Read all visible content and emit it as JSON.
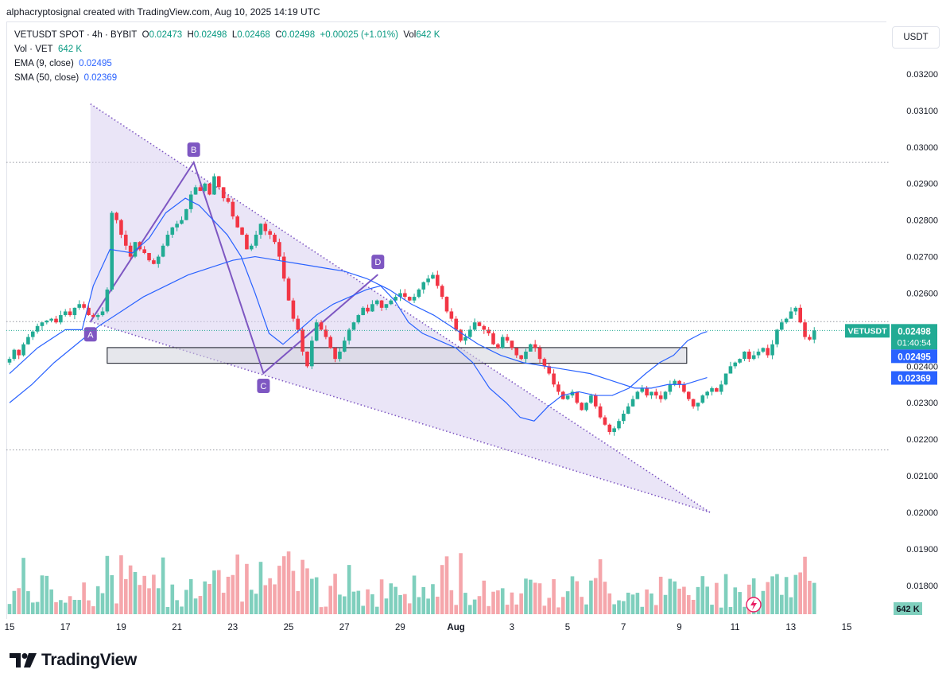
{
  "header": {
    "credit": "alphacryptosignal created with TradingView.com, Aug 10, 2025 14:19 UTC"
  },
  "legend": {
    "symbol": "VETUSDT SPOT · 4h · BYBIT",
    "o_label": "O",
    "o": "0.02473",
    "h_label": "H",
    "h": "0.02498",
    "l_label": "L",
    "l": "0.02468",
    "c_label": "C",
    "c": "0.02498",
    "change": "+0.00025 (+1.01%)",
    "vol_label": "Vol",
    "vol": "642 K",
    "vol_row": "Vol · VET",
    "vol_row_value": "642 K",
    "ema_label": "EMA (9, close)",
    "ema_value": "0.02495",
    "sma_label": "SMA (50, close)",
    "sma_value": "0.02369"
  },
  "currency": "USDT",
  "footer": {
    "brand": "TradingView"
  },
  "colors": {
    "up": "#22ab94",
    "down": "#f23645",
    "up_vol": "#7fcfbd",
    "down_vol": "#f5a6ab",
    "ma": "#2962ff",
    "pattern": "#7e57c2",
    "pattern_fill": "#d9d0f0"
  },
  "chart_data": {
    "type": "candlestick",
    "title": "VETUSDT SPOT · 4h · BYBIT",
    "ylim": [
      0.0174,
      0.0329
    ],
    "yticks": [
      "0.03200",
      "0.03100",
      "0.03000",
      "0.02900",
      "0.02800",
      "0.02700",
      "0.02600",
      "0.02400",
      "0.02300",
      "0.02200",
      "0.02100",
      "0.02000",
      "0.01900",
      "0.01800"
    ],
    "xticks": [
      "15",
      "17",
      "19",
      "21",
      "23",
      "25",
      "27",
      "29",
      "Aug",
      "3",
      "5",
      "7",
      "9",
      "11",
      "13",
      "15"
    ],
    "price_labels": [
      {
        "text": "VETUSDT",
        "value": "0.02498",
        "sub": "01:40:54",
        "y": 0.02498
      },
      {
        "text": "",
        "value": "0.02495",
        "sub": "",
        "y": 0.02495
      },
      {
        "text": "",
        "value": "0.02369",
        "sub": "",
        "y": 0.02369
      }
    ],
    "volume_label": "642 K",
    "pattern_points": [
      {
        "label": "A",
        "date_index": 17.9,
        "price": 0.02522
      },
      {
        "label": "B",
        "date_index": 21.6,
        "price": 0.02958
      },
      {
        "label": "C",
        "date_index": 24.1,
        "price": 0.02381
      },
      {
        "label": "D",
        "date_index": 28.2,
        "price": 0.02651
      }
    ],
    "wedge": {
      "upper": [
        [
          17.9,
          0.03118
        ],
        [
          40.1,
          0.02
        ]
      ],
      "lower": [
        [
          17.9,
          0.02522
        ],
        [
          40.1,
          0.02
        ]
      ]
    },
    "zone": {
      "from_index": 18.5,
      "to_index": 38.5,
      "top": 0.02451,
      "bottom": 0.02408
    },
    "hlines": [
      0.02958,
      0.02522,
      0.02171
    ],
    "x_start": 15,
    "candle_step": 0.1667,
    "closes": [
      0.0242,
      0.02445,
      0.0243,
      0.0246,
      0.0248,
      0.02495,
      0.0251,
      0.0252,
      0.02525,
      0.0253,
      0.0252,
      0.0254,
      0.0255,
      0.0254,
      0.0256,
      0.0257,
      0.0256,
      0.0254,
      0.02535,
      0.0254,
      0.0255,
      0.0261,
      0.0282,
      0.028,
      0.0276,
      0.0273,
      0.027,
      0.0274,
      0.0272,
      0.0271,
      0.0269,
      0.0268,
      0.027,
      0.0273,
      0.0276,
      0.0278,
      0.0279,
      0.028,
      0.0283,
      0.0287,
      0.0289,
      0.0288,
      0.029,
      0.0287,
      0.0292,
      0.0289,
      0.0286,
      0.0285,
      0.0281,
      0.0278,
      0.0276,
      0.0272,
      0.0273,
      0.0276,
      0.0279,
      0.0277,
      0.0276,
      0.0274,
      0.027,
      0.0264,
      0.0258,
      0.0253,
      0.025,
      0.0244,
      0.024,
      0.0247,
      0.0252,
      0.025,
      0.0248,
      0.0245,
      0.0242,
      0.0244,
      0.0247,
      0.025,
      0.0252,
      0.0254,
      0.0256,
      0.0255,
      0.0257,
      0.0258,
      0.0256,
      0.0257,
      0.0258,
      0.0259,
      0.026,
      0.0259,
      0.0258,
      0.0259,
      0.0261,
      0.0263,
      0.0264,
      0.0265,
      0.0262,
      0.0259,
      0.0255,
      0.0253,
      0.025,
      0.0247,
      0.0248,
      0.025,
      0.0252,
      0.0251,
      0.025,
      0.0249,
      0.0246,
      0.0245,
      0.0248,
      0.0247,
      0.0245,
      0.0243,
      0.0242,
      0.0244,
      0.0246,
      0.0245,
      0.0242,
      0.024,
      0.0238,
      0.0235,
      0.0233,
      0.0231,
      0.0232,
      0.0233,
      0.023,
      0.0228,
      0.023,
      0.0232,
      0.0229,
      0.0226,
      0.0224,
      0.0222,
      0.0223,
      0.0225,
      0.0227,
      0.0229,
      0.0231,
      0.0233,
      0.0234,
      0.0232,
      0.0233,
      0.0232,
      0.0231,
      0.0233,
      0.0235,
      0.0236,
      0.0235,
      0.0233,
      0.0231,
      0.0229,
      0.023,
      0.0232,
      0.0233,
      0.0234,
      0.0233,
      0.0235,
      0.0238,
      0.024,
      0.0241,
      0.0242,
      0.0244,
      0.0242,
      0.0243,
      0.0244,
      0.0245,
      0.0243,
      0.0246,
      0.025,
      0.0252,
      0.0253,
      0.0255,
      0.0256,
      0.0252,
      0.0248,
      0.02473,
      0.02498
    ],
    "ema": [
      [
        15.0,
        0.0238
      ],
      [
        16.0,
        0.0245
      ],
      [
        17.0,
        0.025
      ],
      [
        17.6,
        0.025
      ],
      [
        18.0,
        0.0262
      ],
      [
        18.6,
        0.0272
      ],
      [
        19.4,
        0.0271
      ],
      [
        20.0,
        0.0275
      ],
      [
        20.6,
        0.0282
      ],
      [
        21.3,
        0.0286
      ],
      [
        21.8,
        0.0284
      ],
      [
        22.3,
        0.028
      ],
      [
        22.8,
        0.0276
      ],
      [
        23.3,
        0.027
      ],
      [
        23.8,
        0.026
      ],
      [
        24.3,
        0.0249
      ],
      [
        24.8,
        0.0246
      ],
      [
        25.4,
        0.025
      ],
      [
        26.0,
        0.0254
      ],
      [
        26.6,
        0.0257
      ],
      [
        27.2,
        0.0259
      ],
      [
        27.8,
        0.0261
      ],
      [
        28.3,
        0.0262
      ],
      [
        28.8,
        0.0258
      ],
      [
        29.3,
        0.0252
      ],
      [
        29.8,
        0.0249
      ],
      [
        30.4,
        0.0247
      ],
      [
        31.0,
        0.0245
      ],
      [
        31.6,
        0.0241
      ],
      [
        32.2,
        0.0234
      ],
      [
        32.8,
        0.023
      ],
      [
        33.3,
        0.0226
      ],
      [
        33.8,
        0.0225
      ],
      [
        34.3,
        0.0229
      ],
      [
        34.8,
        0.0232
      ],
      [
        35.4,
        0.0233
      ],
      [
        36.0,
        0.0232
      ],
      [
        36.6,
        0.0232
      ],
      [
        37.2,
        0.0234
      ],
      [
        37.8,
        0.0238
      ],
      [
        38.3,
        0.0241
      ],
      [
        38.8,
        0.0243
      ],
      [
        39.3,
        0.0247
      ],
      [
        39.8,
        0.0249
      ],
      [
        40.0,
        0.02495
      ]
    ],
    "sma": [
      [
        15.0,
        0.023
      ],
      [
        15.8,
        0.0235
      ],
      [
        16.6,
        0.0241
      ],
      [
        17.4,
        0.0246
      ],
      [
        18.2,
        0.0251
      ],
      [
        19.0,
        0.0255
      ],
      [
        19.8,
        0.0259
      ],
      [
        20.6,
        0.0262
      ],
      [
        21.4,
        0.0265
      ],
      [
        22.2,
        0.0267
      ],
      [
        23.0,
        0.0269
      ],
      [
        23.8,
        0.027
      ],
      [
        24.6,
        0.0269
      ],
      [
        25.4,
        0.0268
      ],
      [
        26.2,
        0.0267
      ],
      [
        27.0,
        0.0266
      ],
      [
        27.8,
        0.0264
      ],
      [
        28.6,
        0.0261
      ],
      [
        29.4,
        0.0257
      ],
      [
        30.2,
        0.0254
      ],
      [
        31.0,
        0.025
      ],
      [
        31.8,
        0.0246
      ],
      [
        32.6,
        0.0243
      ],
      [
        33.4,
        0.0241
      ],
      [
        34.2,
        0.024
      ],
      [
        35.0,
        0.0239
      ],
      [
        35.8,
        0.0238
      ],
      [
        36.6,
        0.0236
      ],
      [
        37.4,
        0.0234
      ],
      [
        38.0,
        0.0234
      ],
      [
        38.6,
        0.0235
      ],
      [
        39.2,
        0.0235
      ],
      [
        40.0,
        0.02369
      ]
    ]
  }
}
